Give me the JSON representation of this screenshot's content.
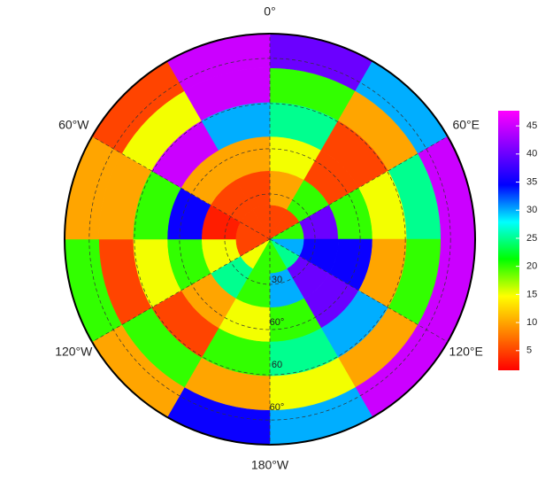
{
  "chart_data": {
    "type": "polar_heatmap",
    "lon_ticks": [
      {
        "value": 0,
        "label": "0°"
      },
      {
        "value": 60,
        "label": "60°E"
      },
      {
        "value": 120,
        "label": "120°E"
      },
      {
        "value": 180,
        "label": "180°W"
      },
      {
        "value": 240,
        "label": "120°W"
      },
      {
        "value": 300,
        "label": "60°W"
      }
    ],
    "lat_labels": [
      "30",
      "60°",
      "60",
      "60°"
    ],
    "colors": [
      "#ff0000",
      "#ff8000",
      "#ffff00",
      "#00ff00",
      "#00ffff",
      "#0000ff",
      "#8000ff",
      "#ff00ff"
    ],
    "zlim": [
      1.5,
      47.7
    ],
    "zticks": [
      5,
      10,
      15,
      20,
      25,
      30,
      35,
      40,
      45
    ],
    "values": [
      [
        5,
        5,
        20,
        30,
        25,
        20,
        20,
        15,
        5,
        5,
        5,
        5
      ],
      [
        10,
        20,
        40,
        35,
        40,
        30,
        20,
        25,
        15,
        3,
        5,
        5
      ],
      [
        15,
        5,
        20,
        35,
        40,
        20,
        15,
        10,
        20,
        35,
        10,
        10
      ],
      [
        25,
        5,
        15,
        10,
        30,
        25,
        20,
        5,
        15,
        20,
        45,
        30
      ],
      [
        20,
        10,
        25,
        20,
        10,
        15,
        10,
        20,
        5,
        10,
        15,
        45
      ],
      [
        40,
        30,
        45,
        45,
        45,
        30,
        35,
        10,
        20,
        10,
        5,
        45
      ]
    ]
  }
}
